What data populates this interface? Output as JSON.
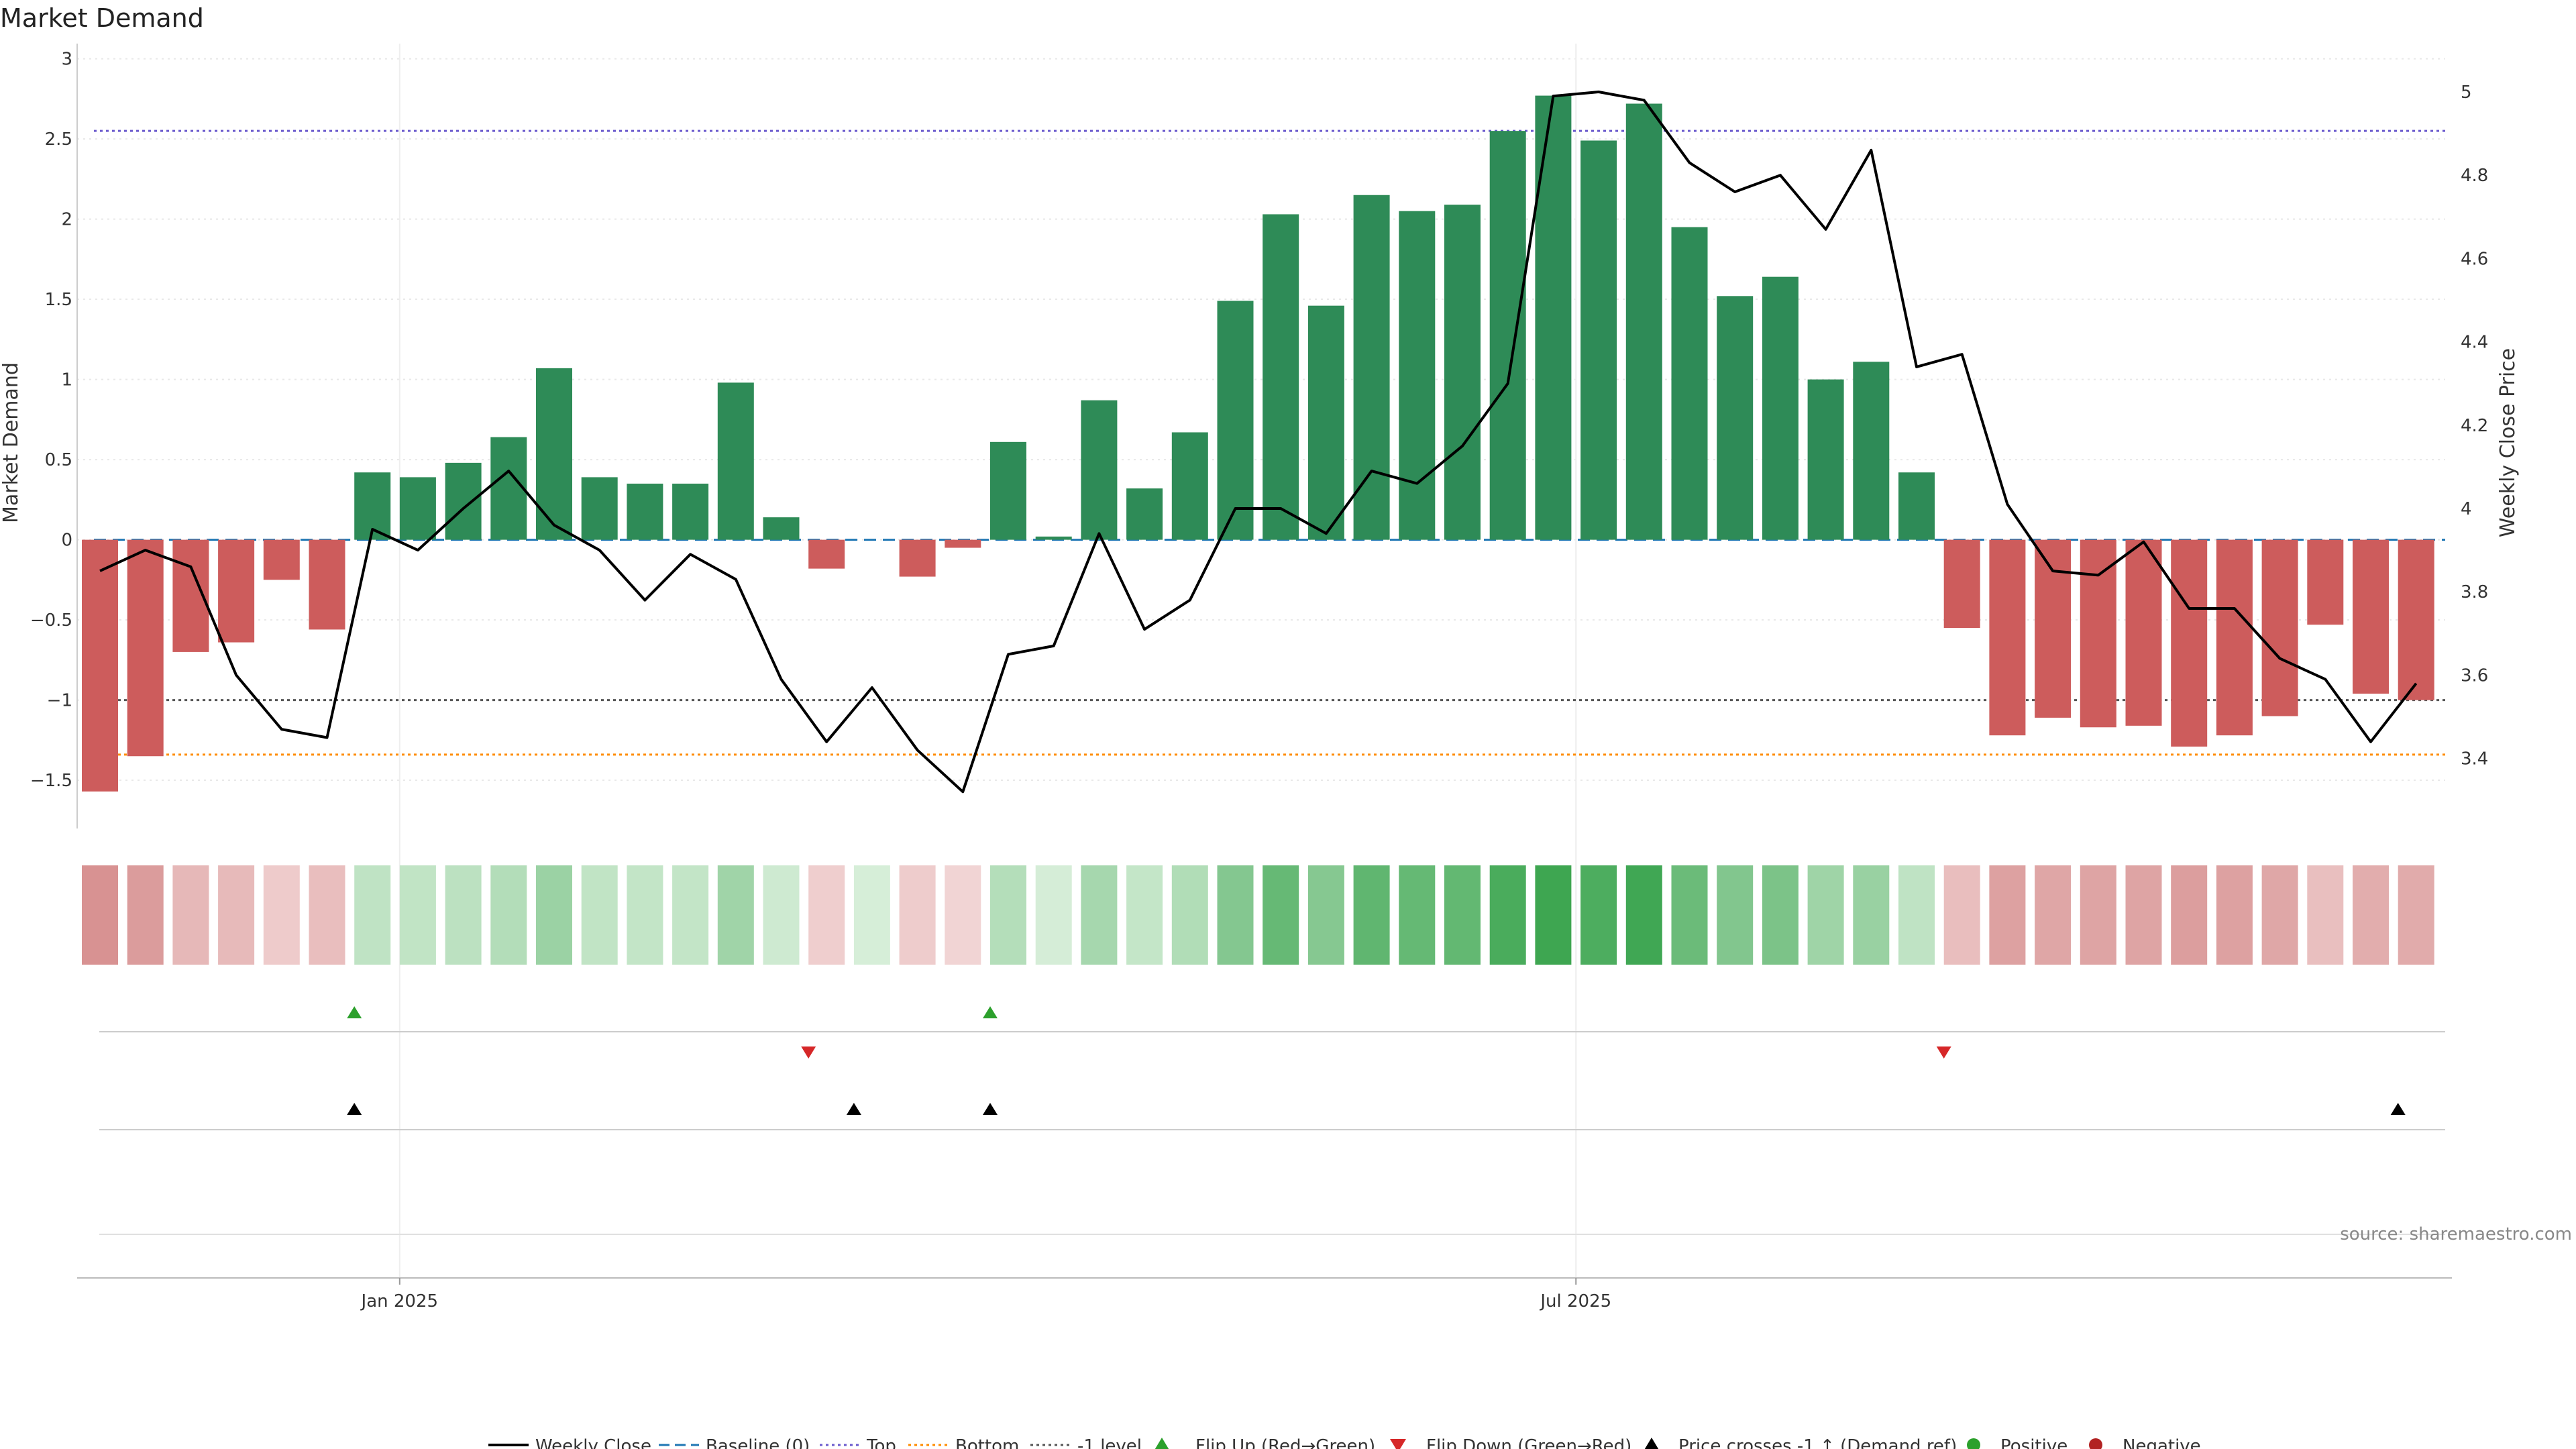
{
  "title": "Market Demand",
  "source": "source: sharemaestro.com",
  "colors": {
    "positive": "#2e8b57",
    "negative": "#cd5c5c",
    "price_line": "#000000",
    "baseline": "#1f77b4",
    "top": "#6a5acd",
    "bottom": "#ff8c00",
    "minus_one": "#555555",
    "flip_up": "#2ca02c",
    "flip_down": "#d62728",
    "cross": "#000000",
    "legend_positive": "#2ca02c",
    "legend_negative": "#b22222"
  },
  "legend": {
    "weekly_close": "Weekly Close",
    "baseline": "Baseline (0)",
    "top": "Top",
    "bottom": "Bottom",
    "minus_one": "-1 level",
    "flip_up": "Flip Up (Red→Green)",
    "flip_down": "Flip Down (Green→Red)",
    "cross": "Price crosses -1 ↑ (Demand ref)",
    "positive": "Positive",
    "negative": "Negative"
  },
  "chart_data": {
    "type": "bar",
    "ylabel": "Market Demand",
    "y2label": "Weekly Close Price",
    "ylim": [
      -1.8,
      3.0
    ],
    "y2lim": [
      3.2,
      5.1
    ],
    "yticks": [
      "3",
      "2.5",
      "2",
      "1.5",
      "1",
      "0.5",
      "0",
      "−0.5",
      "−1",
      "−1.5"
    ],
    "ytick_values": [
      3,
      2.5,
      2,
      1.5,
      1,
      0.5,
      0,
      -0.5,
      -1,
      -1.5
    ],
    "y2ticks": [
      "5",
      "4.8",
      "4.6",
      "4.4",
      "4.2",
      "4",
      "3.8",
      "3.6",
      "3.4"
    ],
    "y2tick_values": [
      5.0,
      4.8,
      4.6,
      4.4,
      4.2,
      4.0,
      3.8,
      3.6,
      3.4
    ],
    "xticks": [
      "Jan 2025",
      "Jul 2025"
    ],
    "xtick_week_index": [
      6.6,
      32.5
    ],
    "reference_lines": {
      "baseline": 0,
      "top": 2.55,
      "bottom": -1.34,
      "minus_one": -1
    },
    "demand": [
      -1.57,
      -1.35,
      -0.7,
      -0.64,
      -0.25,
      -0.56,
      0.42,
      0.39,
      0.48,
      0.64,
      1.07,
      0.39,
      0.35,
      0.35,
      0.98,
      0.14,
      -0.18,
      0,
      -0.23,
      -0.05,
      0.61,
      0.02,
      0.87,
      0.32,
      0.67,
      1.49,
      2.03,
      1.46,
      2.15,
      2.05,
      2.09,
      2.55,
      2.77,
      2.49,
      2.72,
      1.95,
      1.52,
      1.64,
      1.0,
      1.11,
      0.42,
      -0.55,
      -1.22,
      -1.11,
      -1.17,
      -1.16,
      -1.29,
      -1.22,
      -1.1,
      -0.53,
      -0.96,
      -1.0
    ],
    "weekly_close": [
      3.85,
      3.9,
      3.86,
      3.6,
      3.47,
      3.45,
      3.95,
      3.9,
      4.0,
      4.09,
      3.96,
      3.9,
      3.78,
      3.89,
      3.83,
      3.59,
      3.44,
      3.57,
      3.42,
      3.32,
      3.65,
      3.67,
      3.94,
      3.71,
      3.78,
      4.0,
      4.0,
      3.94,
      4.09,
      4.06,
      4.15,
      4.3,
      4.99,
      5.0,
      4.98,
      4.83,
      4.76,
      4.8,
      4.67,
      4.86,
      4.34,
      4.37,
      4.01,
      3.85,
      3.84,
      3.92,
      3.76,
      3.76,
      3.64,
      3.59,
      3.44,
      3.58
    ],
    "flip_up_weeks": [
      6,
      20
    ],
    "flip_down_weeks": [
      16,
      41
    ],
    "cross_weeks": [
      6,
      17,
      20,
      51
    ]
  }
}
